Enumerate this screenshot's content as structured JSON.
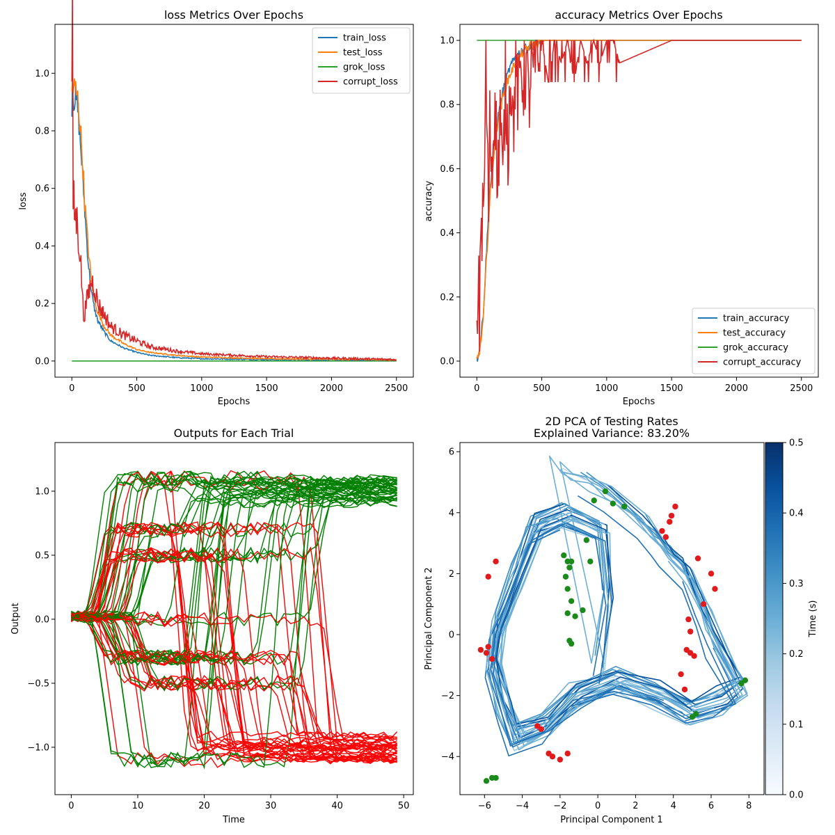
{
  "chart_data": [
    {
      "type": "line",
      "title": "loss Metrics Over Epochs",
      "xlabel": "Epochs",
      "ylabel": "loss",
      "xlim": [
        -130,
        2630
      ],
      "ylim": [
        -0.056,
        1.17
      ],
      "xticks": [
        0,
        500,
        1000,
        1500,
        2000,
        2500
      ],
      "xtick_labels": [
        "0",
        "500",
        "1000",
        "1500",
        "2000",
        "2500"
      ],
      "yticks": [
        0.0,
        0.2,
        0.4,
        0.6,
        0.8,
        1.0
      ],
      "ytick_labels": [
        "0.0",
        "0.2",
        "0.4",
        "0.6",
        "0.8",
        "1.0"
      ],
      "legend_position": "top-right",
      "series": [
        {
          "name": "train_loss",
          "color": "#1f77b4",
          "x": [
            0,
            5,
            10,
            30,
            50,
            75,
            100,
            125,
            150,
            175,
            200,
            250,
            300,
            400,
            500,
            600,
            800,
            1000,
            1500,
            2000,
            2500
          ],
          "y": [
            0.9,
            1.02,
            0.92,
            0.91,
            0.86,
            0.7,
            0.52,
            0.35,
            0.24,
            0.18,
            0.14,
            0.1,
            0.07,
            0.045,
            0.03,
            0.02,
            0.012,
            0.008,
            0.005,
            0.004,
            0.003
          ]
        },
        {
          "name": "test_loss",
          "color": "#ff7f0e",
          "x": [
            0,
            5,
            10,
            30,
            50,
            75,
            100,
            125,
            150,
            175,
            200,
            250,
            300,
            400,
            500,
            600,
            800,
            1000,
            1500,
            2000,
            2500
          ],
          "y": [
            0.93,
            0.98,
            0.95,
            0.94,
            0.9,
            0.75,
            0.55,
            0.4,
            0.28,
            0.21,
            0.17,
            0.12,
            0.09,
            0.06,
            0.04,
            0.03,
            0.02,
            0.014,
            0.008,
            0.006,
            0.004
          ]
        },
        {
          "name": "grok_loss",
          "color": "#2ca02c",
          "x": [
            0,
            500,
            1000,
            1500,
            2000,
            2500
          ],
          "y": [
            0.0,
            0.0,
            0.0,
            0.0,
            0.0,
            0.0
          ]
        },
        {
          "name": "corrupt_loss",
          "color": "#d62728",
          "x": [
            0,
            5,
            10,
            20,
            40,
            60,
            80,
            90,
            100,
            120,
            150,
            175,
            200,
            250,
            300,
            400,
            500,
            600,
            800,
            1000,
            1500,
            2000,
            2500
          ],
          "y": [
            0.95,
            1.12,
            0.56,
            0.52,
            0.48,
            0.4,
            0.25,
            0.15,
            0.17,
            0.22,
            0.28,
            0.26,
            0.2,
            0.16,
            0.12,
            0.09,
            0.07,
            0.05,
            0.035,
            0.025,
            0.015,
            0.01,
            0.005
          ]
        }
      ]
    },
    {
      "type": "line",
      "title": "accuracy Metrics Over Epochs",
      "xlabel": "Epochs",
      "ylabel": "accuracy",
      "xlim": [
        -130,
        2630
      ],
      "ylim": [
        -0.05,
        1.05
      ],
      "xticks": [
        0,
        500,
        1000,
        1500,
        2000,
        2500
      ],
      "xtick_labels": [
        "0",
        "500",
        "1000",
        "1500",
        "2000",
        "2500"
      ],
      "yticks": [
        0.0,
        0.2,
        0.4,
        0.6,
        0.8,
        1.0
      ],
      "ytick_labels": [
        "0.0",
        "0.2",
        "0.4",
        "0.6",
        "0.8",
        "1.0"
      ],
      "legend_position": "bottom-right",
      "series": [
        {
          "name": "train_accuracy",
          "color": "#1f77b4",
          "x": [
            0,
            25,
            50,
            75,
            100,
            125,
            150,
            200,
            250,
            300,
            350,
            400,
            450,
            500,
            1000,
            2500
          ],
          "y": [
            0.0,
            0.05,
            0.15,
            0.35,
            0.52,
            0.64,
            0.73,
            0.84,
            0.91,
            0.95,
            0.97,
            0.98,
            0.99,
            1.0,
            1.0,
            1.0
          ]
        },
        {
          "name": "test_accuracy",
          "color": "#ff7f0e",
          "x": [
            0,
            25,
            50,
            75,
            100,
            125,
            150,
            200,
            250,
            300,
            350,
            400,
            450,
            500,
            1000,
            2500
          ],
          "y": [
            0.0,
            0.04,
            0.13,
            0.32,
            0.5,
            0.62,
            0.72,
            0.82,
            0.89,
            0.93,
            0.96,
            0.98,
            0.99,
            1.0,
            1.0,
            1.0
          ]
        },
        {
          "name": "grok_accuracy",
          "color": "#2ca02c",
          "x": [
            0,
            500,
            1000,
            1500,
            2000,
            2500
          ],
          "y": [
            1.0,
            1.0,
            1.0,
            1.0,
            1.0,
            1.0
          ]
        },
        {
          "name": "corrupt_accuracy",
          "color": "#d62728",
          "x": [
            0,
            10,
            20,
            30,
            40,
            50,
            60,
            70,
            80,
            90,
            100,
            120,
            140,
            160,
            180,
            200,
            220,
            240,
            260,
            280,
            300,
            320,
            340,
            360,
            380,
            400,
            420,
            440,
            460,
            480,
            500,
            550,
            600,
            650,
            700,
            750,
            800,
            850,
            900,
            950,
            1000,
            1050,
            1100,
            1500,
            2000,
            2500
          ],
          "y": [
            0.0,
            0.27,
            0.13,
            0.47,
            0.4,
            0.47,
            0.6,
            0.93,
            0.67,
            0.47,
            0.73,
            0.6,
            0.87,
            0.53,
            0.8,
            0.53,
            0.87,
            0.67,
            0.93,
            0.73,
            0.93,
            0.8,
            0.93,
            0.87,
            0.93,
            0.8,
            0.93,
            0.87,
            1.0,
            0.87,
            1.0,
            0.87,
            1.0,
            0.93,
            1.0,
            0.87,
            1.0,
            0.93,
            1.0,
            0.93,
            1.0,
            1.0,
            0.93,
            1.0,
            1.0,
            1.0
          ]
        }
      ]
    },
    {
      "type": "line",
      "title": "Outputs for Each Trial",
      "xlabel": "Time",
      "ylabel": "Output",
      "xlim": [
        -2.45,
        51.45
      ],
      "ylim": [
        -1.37,
        1.38
      ],
      "xticks": [
        0,
        10,
        20,
        30,
        40,
        50
      ],
      "xtick_labels": [
        "0",
        "10",
        "20",
        "30",
        "40",
        "50"
      ],
      "yticks": [
        -1.0,
        -0.5,
        0.0,
        0.5,
        1.0
      ],
      "ytick_labels": [
        "−1.0",
        "−0.5",
        "0.0",
        "0.5",
        "1.0"
      ],
      "series_groups": [
        {
          "color": "#008000",
          "final_value": 1.0,
          "trial_count": 40
        },
        {
          "color": "#ff0000",
          "final_value": -1.0,
          "trial_count": 40
        }
      ]
    },
    {
      "type": "line",
      "title": "2D PCA of Testing Rates",
      "subtitle": "Explained Variance: 83.20%",
      "xlabel": "Principal Component 1",
      "ylabel": "Principal Component 2",
      "xlim": [
        -7.3,
        8.8
      ],
      "ylim": [
        -5.25,
        6.3
      ],
      "xticks": [
        -6,
        -4,
        -2,
        0,
        2,
        4,
        6,
        8
      ],
      "xtick_labels": [
        "−6",
        "−4",
        "−2",
        "0",
        "2",
        "4",
        "6",
        "8"
      ],
      "yticks": [
        -4,
        -2,
        0,
        2,
        4,
        6
      ],
      "ytick_labels": [
        "−4",
        "−2",
        "0",
        "2",
        "4",
        "6"
      ],
      "colorbar": {
        "label": "Time (s)",
        "range": [
          0.0,
          0.5
        ],
        "ticks": [
          "0.0",
          "0.1",
          "0.2",
          "0.3",
          "0.4",
          "0.5"
        ],
        "colormap": "Blues"
      },
      "trajectory_nodes": [
        [
          0.2,
          -1.2
        ],
        [
          0.6,
          1.2
        ],
        [
          0.3,
          3.4
        ],
        [
          -1.6,
          3.9
        ],
        [
          -3.2,
          3.5
        ],
        [
          -4.2,
          1.8
        ],
        [
          -5.2,
          0.2
        ],
        [
          -5.4,
          -1.0
        ],
        [
          -4.8,
          -2.4
        ],
        [
          -4.2,
          -3.4
        ],
        [
          -2.6,
          -3.0
        ],
        [
          -1.0,
          -2.0
        ],
        [
          1.2,
          -1.5
        ],
        [
          3.4,
          -2.0
        ],
        [
          5.0,
          -2.6
        ],
        [
          6.6,
          -2.2
        ],
        [
          7.6,
          -1.9
        ],
        [
          6.2,
          -0.2
        ],
        [
          5.6,
          0.8
        ],
        [
          4.8,
          2.0
        ],
        [
          3.8,
          2.6
        ],
        [
          3.2,
          3.0
        ],
        [
          2.4,
          3.6
        ],
        [
          0.6,
          4.6
        ],
        [
          -0.6,
          5.0
        ],
        [
          -1.6,
          5.2
        ],
        [
          -2.2,
          5.6
        ]
      ],
      "red_markers": [
        [
          4.1,
          4.2
        ],
        [
          3.9,
          3.9
        ],
        [
          3.8,
          3.7
        ],
        [
          3.6,
          3.2
        ],
        [
          3.4,
          3.4
        ],
        [
          5.3,
          2.5
        ],
        [
          6.0,
          2.0
        ],
        [
          6.2,
          1.5
        ],
        [
          5.6,
          1.0
        ],
        [
          4.8,
          0.5
        ],
        [
          4.9,
          0.1
        ],
        [
          4.7,
          -0.5
        ],
        [
          4.9,
          -0.6
        ],
        [
          5.1,
          -0.7
        ],
        [
          4.4,
          -1.3
        ],
        [
          4.6,
          -1.8
        ],
        [
          -6.2,
          -0.5
        ],
        [
          -5.9,
          -0.6
        ],
        [
          -5.6,
          -0.8
        ],
        [
          -5.8,
          -0.4
        ],
        [
          -3.2,
          -3.0
        ],
        [
          -3.0,
          -3.1
        ],
        [
          -2.6,
          -3.9
        ],
        [
          -2.4,
          -4.0
        ],
        [
          -2.0,
          -4.1
        ],
        [
          -1.6,
          -3.9
        ],
        [
          -5.8,
          1.9
        ],
        [
          -5.4,
          2.4
        ]
      ],
      "green_markers": [
        [
          0.4,
          4.7
        ],
        [
          -0.2,
          4.4
        ],
        [
          0.8,
          4.3
        ],
        [
          1.4,
          4.2
        ],
        [
          -1.8,
          2.6
        ],
        [
          -1.6,
          2.4
        ],
        [
          -1.4,
          2.4
        ],
        [
          -1.5,
          2.2
        ],
        [
          -1.7,
          1.9
        ],
        [
          -0.4,
          2.4
        ],
        [
          -1.6,
          1.5
        ],
        [
          -0.6,
          3.1
        ],
        [
          -1.4,
          1.1
        ],
        [
          -1.6,
          0.7
        ],
        [
          -1.2,
          0.6
        ],
        [
          -0.8,
          0.8
        ],
        [
          -1.5,
          -0.2
        ],
        [
          -1.4,
          -0.3
        ],
        [
          7.8,
          -1.5
        ],
        [
          7.6,
          -1.6
        ],
        [
          5.2,
          -2.6
        ],
        [
          5.0,
          -2.7
        ],
        [
          -5.9,
          -4.8
        ],
        [
          -5.6,
          -4.7
        ],
        [
          -5.4,
          -4.7
        ]
      ]
    }
  ]
}
